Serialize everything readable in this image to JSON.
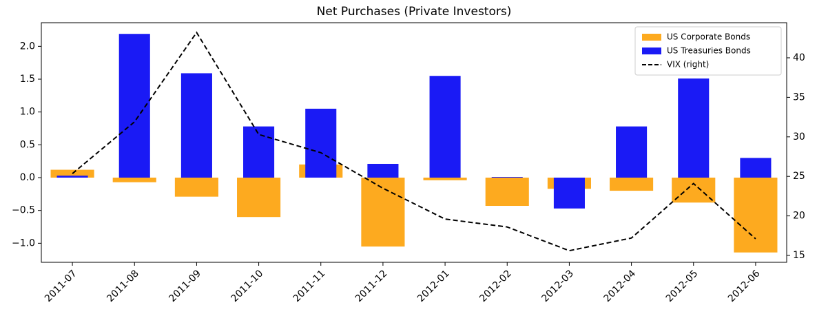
{
  "chart_data": {
    "type": "bar",
    "title": "Net Purchases (Private Investors)",
    "categories": [
      "2011-07",
      "2011-08",
      "2011-09",
      "2011-10",
      "2011-11",
      "2011-12",
      "2012-01",
      "2012-02",
      "2012-03",
      "2012-04",
      "2012-05",
      "2012-06"
    ],
    "series": [
      {
        "name": "US Corporate Bonds",
        "type": "bar",
        "color": "#fdaa1f",
        "values": [
          0.12,
          -0.07,
          -0.29,
          -0.6,
          0.2,
          -1.05,
          -0.04,
          -0.43,
          -0.17,
          -0.2,
          -0.38,
          -1.14
        ]
      },
      {
        "name": "US Treasuries Bonds",
        "type": "bar",
        "color": "#1a1af5",
        "values": [
          0.03,
          2.19,
          1.59,
          0.78,
          1.05,
          0.21,
          1.55,
          0.01,
          -0.47,
          0.78,
          1.51,
          0.3
        ]
      },
      {
        "name": "VIX (right)",
        "type": "line",
        "axis": "y2",
        "color": "#000000",
        "dashed": true,
        "values": [
          25.35,
          31.9,
          43.2,
          30.3,
          28.0,
          23.5,
          19.6,
          18.6,
          15.6,
          17.2,
          24.1,
          17.1
        ]
      }
    ],
    "ylim": [
      -1.29,
      2.36
    ],
    "yticks": [
      {
        "value": -1.0,
        "label": "−1.0"
      },
      {
        "value": -0.5,
        "label": "−0.5"
      },
      {
        "value": 0.0,
        "label": "0.0"
      },
      {
        "value": 0.5,
        "label": "0.5"
      },
      {
        "value": 1.0,
        "label": "1.0"
      },
      {
        "value": 1.5,
        "label": "1.5"
      },
      {
        "value": 2.0,
        "label": "2.0"
      }
    ],
    "y2lim": [
      14.13,
      44.44
    ],
    "y2ticks": [
      15,
      20,
      25,
      30,
      35,
      40
    ],
    "legend": "upper right"
  }
}
